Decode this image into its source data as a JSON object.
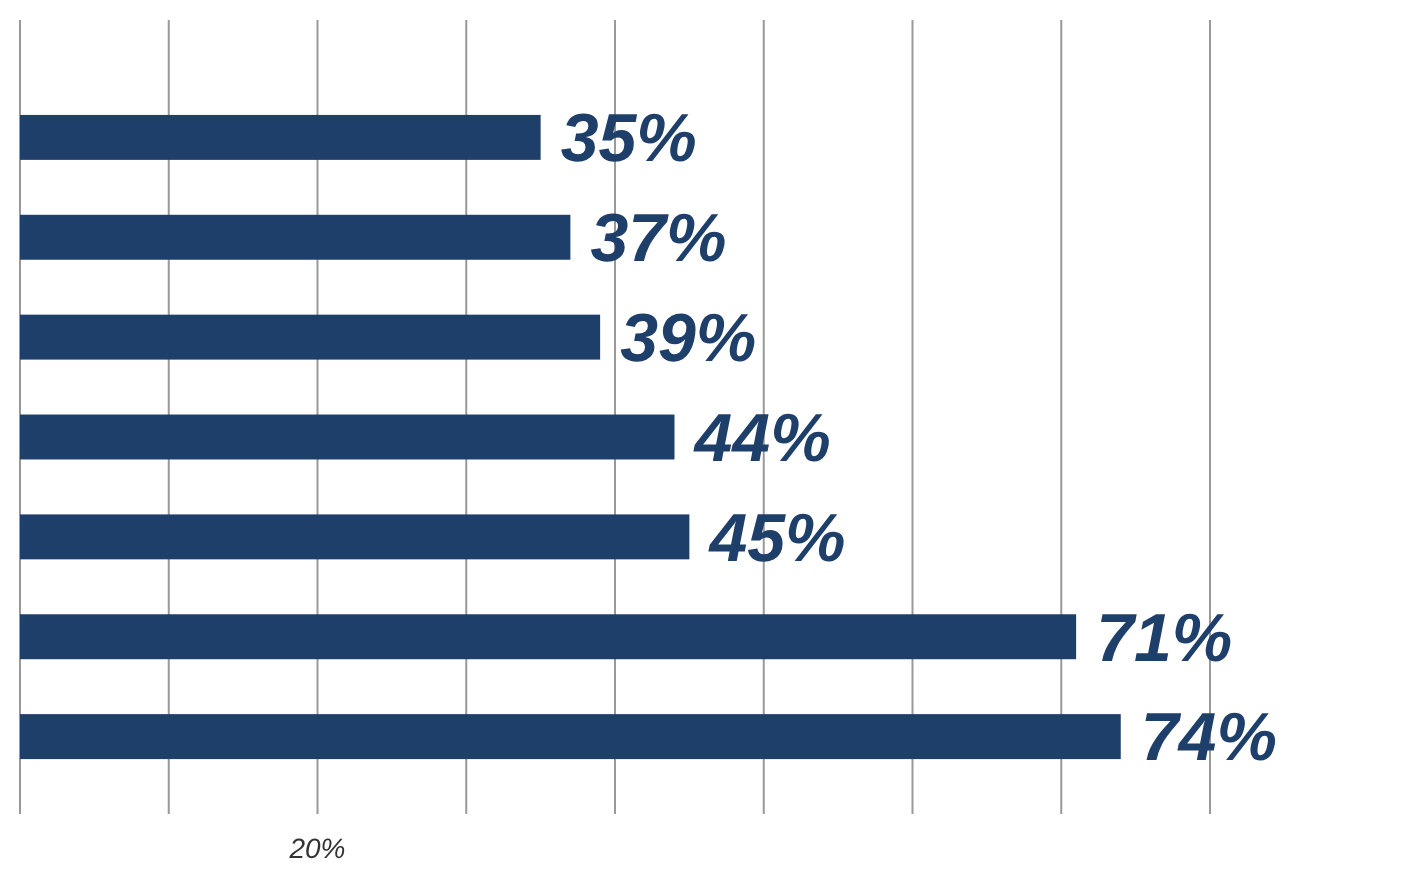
{
  "chart_data": {
    "type": "bar",
    "orientation": "horizontal",
    "categories": [
      null,
      null,
      null,
      null,
      null,
      null,
      null
    ],
    "values": [
      35,
      37,
      39,
      44,
      45,
      71,
      74
    ],
    "value_labels": [
      "35%",
      "37%",
      "39%",
      "44%",
      "45%",
      "71%",
      "74%"
    ],
    "color": "#1f3f6b",
    "xlim": [
      0,
      80
    ],
    "xticks": [
      {
        "value": 0,
        "label": null
      },
      {
        "value": 10,
        "label": null
      },
      {
        "value": 20,
        "label": "20%"
      },
      {
        "value": 30,
        "label": null
      },
      {
        "value": 40,
        "label": null
      },
      {
        "value": 50,
        "label": null
      },
      {
        "value": 60,
        "label": null
      },
      {
        "value": 70,
        "label": null
      },
      {
        "value": 80,
        "label": null
      }
    ],
    "grid": "x",
    "tick_labels": "x"
  }
}
